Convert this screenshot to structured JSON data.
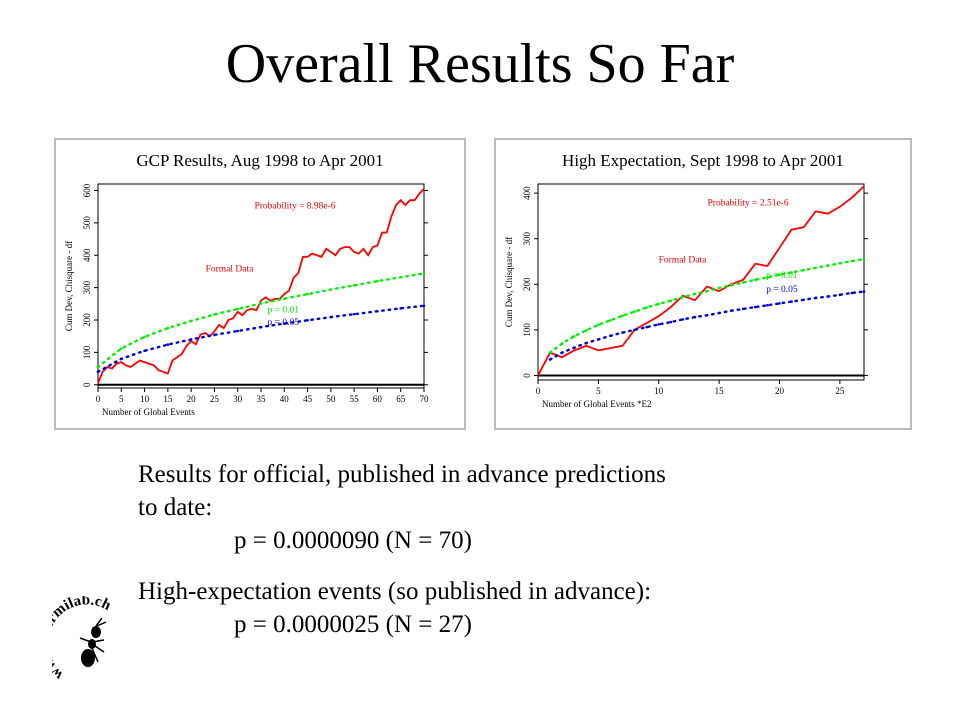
{
  "slide": {
    "title": "Overall Results So Far",
    "results": {
      "line1": "Results for official, published in advance predictions",
      "line2": "to date:",
      "line3": "p = 0.0000090  (N = 70)",
      "line4": "High-expectation events (so published in advance):",
      "line5": "p = 0.0000025  (N = 27)"
    },
    "logo": {
      "text": "www.fourmilab.ch"
    }
  },
  "colors": {
    "observed": "#ff0000",
    "p001": "#00ee00",
    "p005": "#0000dd",
    "annotation_red": "#ee0000"
  },
  "chart_data": [
    {
      "type": "line",
      "title": "GCP Results, Aug 1998 to Apr 2001",
      "xlabel": "Number of Global Events",
      "ylabel": "Cum Dev, Chisquare - df",
      "xlim": [
        0,
        70
      ],
      "ylim": [
        -10,
        620
      ],
      "xticks": [
        0,
        5,
        10,
        15,
        20,
        25,
        30,
        35,
        40,
        45,
        50,
        55,
        60,
        65,
        70
      ],
      "yticks": [
        0,
        100,
        200,
        300,
        400,
        500,
        600
      ],
      "annotations": {
        "probability": "Probability = 8.98e-6",
        "formal": "Formal Data",
        "p001": "p = 0.01",
        "p005": "p = 0.05"
      },
      "series": [
        {
          "name": "Formal Data",
          "style": "solid",
          "x": [
            0,
            1,
            2,
            3,
            4,
            5,
            6,
            7,
            8,
            9,
            10,
            11,
            12,
            13,
            14,
            15,
            16,
            17,
            18,
            19,
            20,
            21,
            22,
            23,
            24,
            25,
            26,
            27,
            28,
            29,
            30,
            31,
            32,
            33,
            34,
            35,
            36,
            37,
            38,
            39,
            40,
            41,
            42,
            43,
            44,
            45,
            46,
            47,
            48,
            49,
            50,
            51,
            52,
            53,
            54,
            55,
            56,
            57,
            58,
            59,
            60,
            61,
            62,
            63,
            64,
            65,
            66,
            67,
            68,
            69,
            70
          ],
          "y": [
            5,
            40,
            55,
            50,
            65,
            70,
            60,
            55,
            65,
            75,
            70,
            65,
            60,
            45,
            40,
            35,
            75,
            85,
            95,
            120,
            135,
            125,
            155,
            160,
            150,
            165,
            185,
            175,
            200,
            205,
            225,
            215,
            230,
            235,
            230,
            260,
            270,
            260,
            265,
            265,
            280,
            290,
            330,
            345,
            395,
            395,
            405,
            400,
            395,
            420,
            410,
            400,
            420,
            425,
            425,
            410,
            405,
            420,
            400,
            425,
            430,
            470,
            470,
            520,
            555,
            570,
            555,
            570,
            570,
            590,
            605
          ]
        },
        {
          "name": "p = 0.01",
          "style": "dotted",
          "x": [
            0,
            5,
            10,
            15,
            20,
            25,
            30,
            35,
            40,
            45,
            50,
            55,
            60,
            65,
            70
          ],
          "y": [
            55,
            112,
            148,
            175,
            197,
            217,
            234,
            251,
            266,
            280,
            294,
            307,
            320,
            332,
            344
          ]
        },
        {
          "name": "p = 0.05",
          "style": "dotted",
          "x": [
            0,
            5,
            10,
            15,
            20,
            25,
            30,
            35,
            40,
            45,
            50,
            55,
            60,
            65,
            70
          ],
          "y": [
            40,
            80,
            105,
            124,
            140,
            154,
            166,
            178,
            189,
            199,
            209,
            218,
            227,
            236,
            244
          ]
        }
      ]
    },
    {
      "type": "line",
      "title": "High Expectation, Sept 1998 to Apr 2001",
      "xlabel": "Number of Global Events  *E2",
      "ylabel": "Cum Dev, Chisquare - df",
      "xlim": [
        0,
        27
      ],
      "ylim": [
        -10,
        420
      ],
      "xticks": [
        0,
        5,
        10,
        15,
        20,
        25
      ],
      "yticks": [
        0,
        100,
        200,
        300,
        400
      ],
      "annotations": {
        "probability": "Probability = 2.51e-6",
        "formal": "Formal Data",
        "p001": "p = 0.01",
        "p005": "p = 0.05"
      },
      "series": [
        {
          "name": "Formal Data",
          "style": "solid",
          "x": [
            0,
            1,
            2,
            3,
            4,
            5,
            6,
            7,
            8,
            9,
            10,
            11,
            12,
            13,
            14,
            15,
            16,
            17,
            18,
            19,
            20,
            21,
            22,
            23,
            24,
            25,
            26,
            27
          ],
          "y": [
            0,
            50,
            40,
            55,
            65,
            55,
            60,
            65,
            100,
            115,
            130,
            150,
            175,
            165,
            195,
            185,
            200,
            210,
            245,
            240,
            280,
            320,
            325,
            360,
            355,
            370,
            390,
            415
          ]
        },
        {
          "name": "p = 0.01",
          "style": "dotted",
          "x": [
            1,
            2,
            3,
            4,
            5,
            6,
            7,
            8,
            9,
            10,
            11,
            12,
            13,
            14,
            15,
            16,
            17,
            18,
            19,
            20,
            21,
            22,
            23,
            24,
            25,
            26,
            27
          ],
          "y": [
            50,
            70,
            86,
            99,
            111,
            121,
            131,
            140,
            149,
            157,
            164,
            172,
            179,
            185,
            192,
            198,
            204,
            210,
            215,
            221,
            226,
            231,
            236,
            241,
            246,
            251,
            255
          ]
        },
        {
          "name": "p = 0.05",
          "style": "dotted",
          "x": [
            1,
            2,
            3,
            4,
            5,
            6,
            7,
            8,
            9,
            10,
            11,
            12,
            13,
            14,
            15,
            16,
            17,
            18,
            19,
            20,
            21,
            22,
            23,
            24,
            25,
            26,
            27
          ],
          "y": [
            35,
            50,
            61,
            71,
            79,
            87,
            94,
            100,
            106,
            112,
            117,
            123,
            128,
            132,
            137,
            142,
            146,
            150,
            154,
            158,
            162,
            166,
            170,
            173,
            177,
            181,
            184
          ]
        }
      ]
    }
  ]
}
